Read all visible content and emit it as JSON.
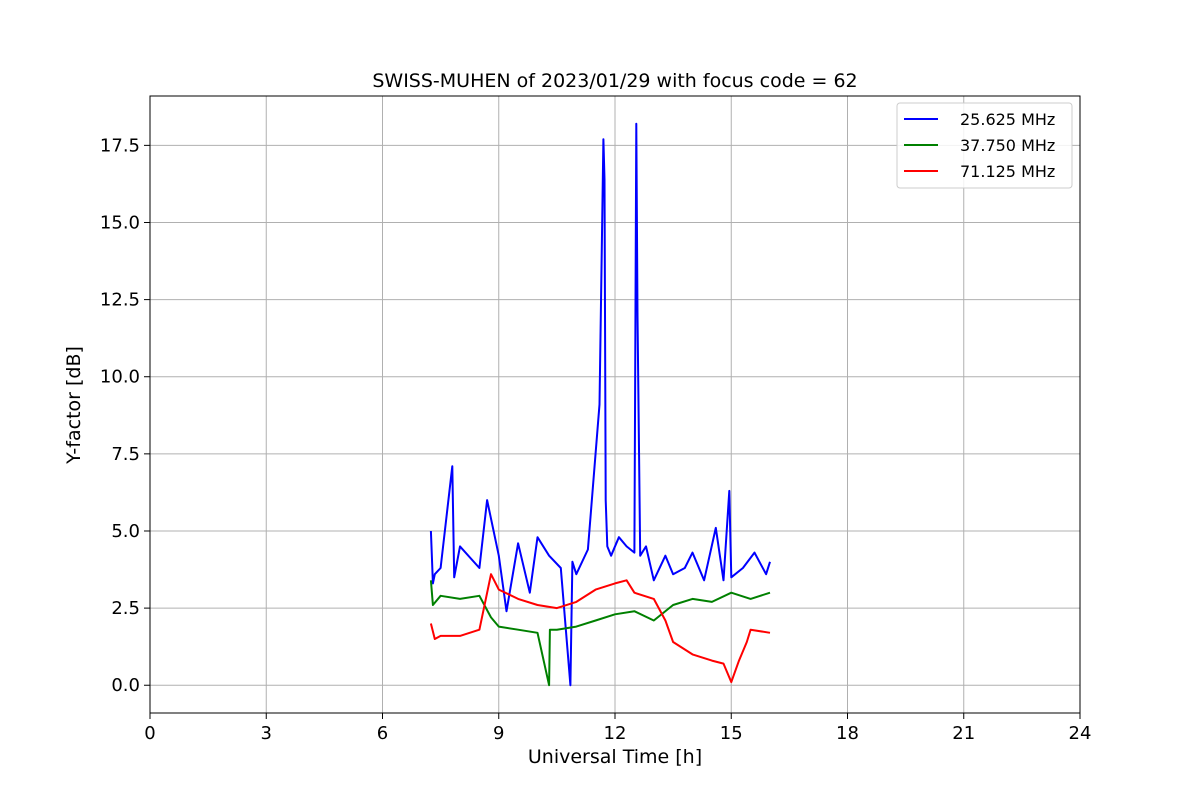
{
  "chart_data": {
    "type": "line",
    "title": "SWISS-MUHEN of 2023/01/29 with focus code = 62",
    "xlabel": "Universal Time [h]",
    "ylabel": "Y-factor [dB]",
    "xlim": [
      0,
      24
    ],
    "ylim": [
      -0.9,
      19.1
    ],
    "xticks": [
      0,
      3,
      6,
      9,
      12,
      15,
      18,
      21,
      24
    ],
    "xtick_labels": [
      "0",
      "3",
      "6",
      "9",
      "12",
      "15",
      "18",
      "21",
      "24"
    ],
    "yticks": [
      0.0,
      2.5,
      5.0,
      7.5,
      10.0,
      12.5,
      15.0,
      17.5
    ],
    "ytick_labels": [
      "0.0",
      "2.5",
      "5.0",
      "7.5",
      "10.0",
      "12.5",
      "15.0",
      "17.5"
    ],
    "grid": true,
    "legend_position": "top-right",
    "series": [
      {
        "name": "25.625 MHz",
        "color": "#0000ff",
        "x": [
          7.25,
          7.3,
          7.35,
          7.5,
          7.8,
          7.85,
          8.0,
          8.5,
          8.7,
          9.0,
          9.2,
          9.5,
          9.8,
          10.0,
          10.3,
          10.6,
          10.85,
          10.9,
          11.0,
          11.3,
          11.6,
          11.7,
          11.73,
          11.76,
          11.8,
          11.9,
          12.1,
          12.3,
          12.5,
          12.55,
          12.58,
          12.65,
          12.8,
          13.0,
          13.3,
          13.5,
          13.8,
          14.0,
          14.3,
          14.6,
          14.8,
          14.95,
          15.0,
          15.3,
          15.6,
          15.9,
          16.0
        ],
        "y": [
          5.0,
          3.3,
          3.6,
          3.8,
          7.1,
          3.5,
          4.5,
          3.8,
          6.0,
          4.2,
          2.4,
          4.6,
          3.0,
          4.8,
          4.2,
          3.8,
          0.0,
          4.0,
          3.6,
          4.4,
          9.1,
          17.7,
          16.4,
          6.0,
          4.5,
          4.2,
          4.8,
          4.5,
          4.3,
          18.2,
          12.0,
          4.2,
          4.5,
          3.4,
          4.2,
          3.6,
          3.8,
          4.3,
          3.4,
          5.1,
          3.4,
          6.3,
          3.5,
          3.8,
          4.3,
          3.6,
          4.0
        ]
      },
      {
        "name": "37.750 MHz",
        "color": "#008000",
        "x": [
          7.25,
          7.3,
          7.5,
          8.0,
          8.5,
          8.8,
          9.0,
          9.5,
          10.0,
          10.3,
          10.32,
          10.5,
          11.0,
          11.5,
          12.0,
          12.5,
          13.0,
          13.5,
          14.0,
          14.5,
          15.0,
          15.5,
          16.0
        ],
        "y": [
          3.4,
          2.6,
          2.9,
          2.8,
          2.9,
          2.2,
          1.9,
          1.8,
          1.7,
          0.0,
          1.8,
          1.8,
          1.9,
          2.1,
          2.3,
          2.4,
          2.1,
          2.6,
          2.8,
          2.7,
          3.0,
          2.8,
          3.0
        ]
      },
      {
        "name": "71.125 MHz",
        "color": "#ff0000",
        "x": [
          7.25,
          7.35,
          7.5,
          8.0,
          8.5,
          8.8,
          9.0,
          9.5,
          10.0,
          10.5,
          11.0,
          11.5,
          12.0,
          12.3,
          12.5,
          13.0,
          13.3,
          13.5,
          14.0,
          14.5,
          14.8,
          15.0,
          15.2,
          15.4,
          15.5,
          16.0
        ],
        "y": [
          2.0,
          1.5,
          1.6,
          1.6,
          1.8,
          3.6,
          3.1,
          2.8,
          2.6,
          2.5,
          2.7,
          3.1,
          3.3,
          3.4,
          3.0,
          2.8,
          2.1,
          1.4,
          1.0,
          0.8,
          0.7,
          0.1,
          0.8,
          1.4,
          1.8,
          1.7
        ]
      }
    ]
  }
}
